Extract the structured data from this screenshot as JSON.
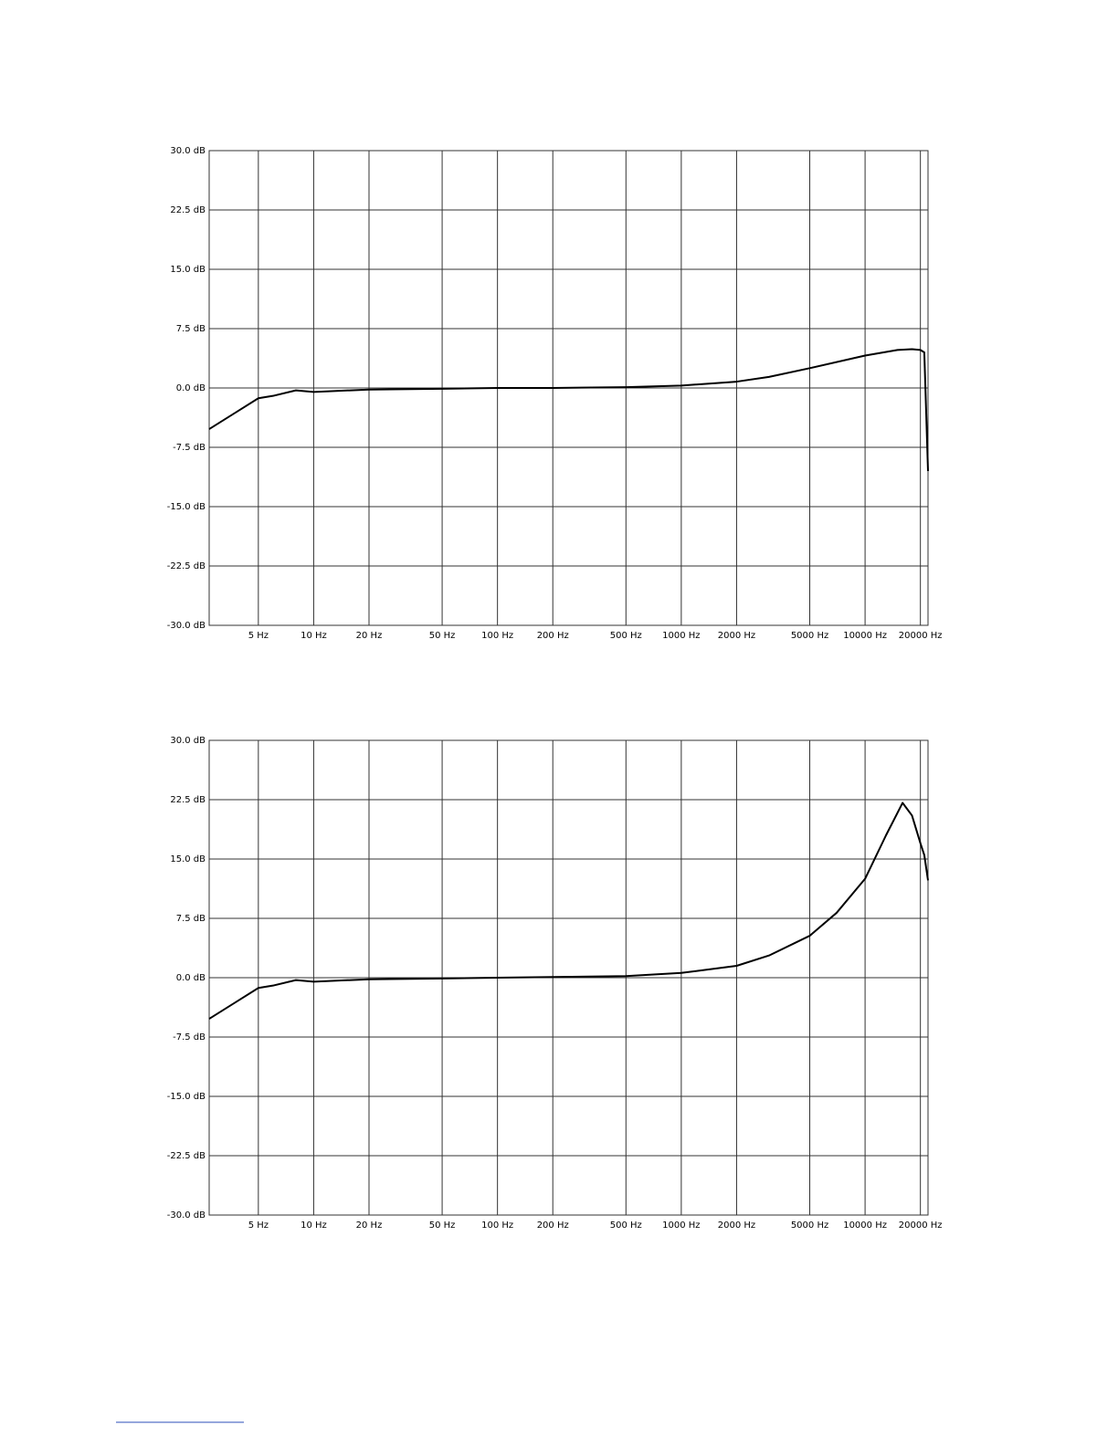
{
  "chart_data": [
    {
      "type": "line",
      "log_x": true,
      "grid": true,
      "xlim": [
        2.7,
        22000
      ],
      "ylim": [
        -30,
        30
      ],
      "xticks": [
        {
          "value": 5,
          "label": "5 Hz"
        },
        {
          "value": 10,
          "label": "10 Hz"
        },
        {
          "value": 20,
          "label": "20 Hz"
        },
        {
          "value": 50,
          "label": "50 Hz"
        },
        {
          "value": 100,
          "label": "100 Hz"
        },
        {
          "value": 200,
          "label": "200 Hz"
        },
        {
          "value": 500,
          "label": "500 Hz"
        },
        {
          "value": 1000,
          "label": "1000 Hz"
        },
        {
          "value": 2000,
          "label": "2000 Hz"
        },
        {
          "value": 5000,
          "label": "5000 Hz"
        },
        {
          "value": 10000,
          "label": "10000 Hz"
        },
        {
          "value": 20000,
          "label": "20000 Hz"
        }
      ],
      "yticks": [
        {
          "value": 30,
          "label": "30.0 dB"
        },
        {
          "value": 22.5,
          "label": "22.5 dB"
        },
        {
          "value": 15,
          "label": "15.0 dB"
        },
        {
          "value": 7.5,
          "label": "7.5 dB"
        },
        {
          "value": 0,
          "label": "0.0 dB"
        },
        {
          "value": -7.5,
          "label": "-7.5 dB"
        },
        {
          "value": -15,
          "label": "-15.0 dB"
        },
        {
          "value": -22.5,
          "label": "-22.5 dB"
        },
        {
          "value": -30,
          "label": "-30.0 dB"
        }
      ],
      "x": [
        2.7,
        5,
        6,
        8,
        10,
        20,
        50,
        100,
        200,
        500,
        1000,
        2000,
        3000,
        5000,
        10000,
        15000,
        18000,
        20000,
        21000,
        22000
      ],
      "series": [
        {
          "color": "#000000",
          "values": [
            -5.2,
            -1.3,
            -1.0,
            -0.3,
            -0.5,
            -0.2,
            -0.1,
            0,
            0,
            0.1,
            0.3,
            0.8,
            1.4,
            2.5,
            4.1,
            4.8,
            4.9,
            4.8,
            4.5,
            -10.5
          ]
        }
      ]
    },
    {
      "type": "line",
      "log_x": true,
      "grid": true,
      "xlim": [
        2.7,
        22000
      ],
      "ylim": [
        -30,
        30
      ],
      "xticks": [
        {
          "value": 5,
          "label": "5 Hz"
        },
        {
          "value": 10,
          "label": "10 Hz"
        },
        {
          "value": 20,
          "label": "20 Hz"
        },
        {
          "value": 50,
          "label": "50 Hz"
        },
        {
          "value": 100,
          "label": "100 Hz"
        },
        {
          "value": 200,
          "label": "200 Hz"
        },
        {
          "value": 500,
          "label": "500 Hz"
        },
        {
          "value": 1000,
          "label": "1000 Hz"
        },
        {
          "value": 2000,
          "label": "2000 Hz"
        },
        {
          "value": 5000,
          "label": "5000 Hz"
        },
        {
          "value": 10000,
          "label": "10000 Hz"
        },
        {
          "value": 20000,
          "label": "20000 Hz"
        }
      ],
      "yticks": [
        {
          "value": 30,
          "label": "30.0 dB"
        },
        {
          "value": 22.5,
          "label": "22.5 dB"
        },
        {
          "value": 15,
          "label": "15.0 dB"
        },
        {
          "value": 7.5,
          "label": "7.5 dB"
        },
        {
          "value": 0,
          "label": "0.0 dB"
        },
        {
          "value": -7.5,
          "label": "-7.5 dB"
        },
        {
          "value": -15,
          "label": "-15.0 dB"
        },
        {
          "value": -22.5,
          "label": "-22.5 dB"
        },
        {
          "value": -30,
          "label": "-30.0 dB"
        }
      ],
      "x": [
        2.7,
        5,
        6,
        8,
        10,
        20,
        50,
        100,
        500,
        1000,
        2000,
        3000,
        5000,
        7000,
        10000,
        13000,
        16000,
        18000,
        20000,
        21000,
        22000
      ],
      "series": [
        {
          "color": "#000000",
          "values": [
            -5.2,
            -1.3,
            -1.0,
            -0.3,
            -0.5,
            -0.2,
            -0.1,
            0,
            0.2,
            0.6,
            1.5,
            2.8,
            5.3,
            8.2,
            12.5,
            18,
            22.1,
            20.5,
            17,
            15.5,
            12.3
          ]
        }
      ]
    }
  ]
}
